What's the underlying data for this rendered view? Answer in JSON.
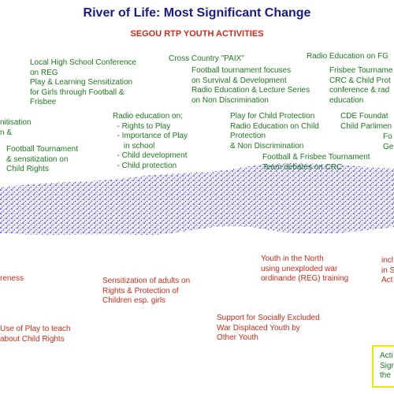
{
  "header": {
    "title": "River of Life: Most Significant Change",
    "subtitle": "SEGOU RTP YOUTH ACTIVITIES"
  },
  "labels": [
    {
      "lines": [
        "Local High School Conference",
        "on REG",
        "Play & Learning Sensitization",
        "for Girls through Football &",
        "Frisbee"
      ]
    },
    {
      "lines": [
        "Cross Country \"PAIX\""
      ]
    },
    {
      "lines": [
        "Football tournament focuses",
        "on Survival & Development",
        "Radio Education & Lecture Series",
        "on Non Discrimination"
      ]
    },
    {
      "lines": [
        "Radio Education on FG"
      ]
    },
    {
      "lines": [
        "Frisbee Tourname",
        "CRC & Child Prot",
        "conference & rad",
        "education"
      ]
    },
    {
      "lines": [
        "nitisation",
        "n &"
      ]
    },
    {
      "lines": [
        "Football Tournament",
        "& sensitization on",
        "Child Rights"
      ]
    },
    {
      "lines": [
        "Radio education on:",
        "  - Rights to Play",
        "  - Importance of Play",
        "     in school",
        "  - Child development",
        "  - Child protection"
      ]
    },
    {
      "lines": [
        "Play for Child Protection",
        "Radio Education on Child",
        "Protection",
        "& Non Discrimination"
      ]
    },
    {
      "lines": [
        "CDE Foundat",
        "Child Parlimen"
      ]
    },
    {
      "lines": [
        "Fo",
        "Ge"
      ]
    },
    {
      "lines": [
        "Football & Frisbee Tournament",
        "Team debates on CRC"
      ]
    },
    {
      "lines": [
        "reness"
      ]
    },
    {
      "lines": [
        "Sensitization of adults on",
        "Rights & Protection of",
        "Children esp. girls"
      ]
    },
    {
      "lines": [
        "Youth in the North",
        "using unexploded war",
        "ordinande (REG) training"
      ]
    },
    {
      "lines": [
        "incl",
        "in S",
        "Act"
      ]
    },
    {
      "lines": [
        "Use of Play to teach",
        "about Child Rights"
      ]
    },
    {
      "lines": [
        "Support for Socially Excluded",
        "War Displaced Youth by",
        "Other Youth"
      ]
    },
    {
      "lines": [
        "Acti",
        "Sign",
        "the"
      ]
    }
  ]
}
